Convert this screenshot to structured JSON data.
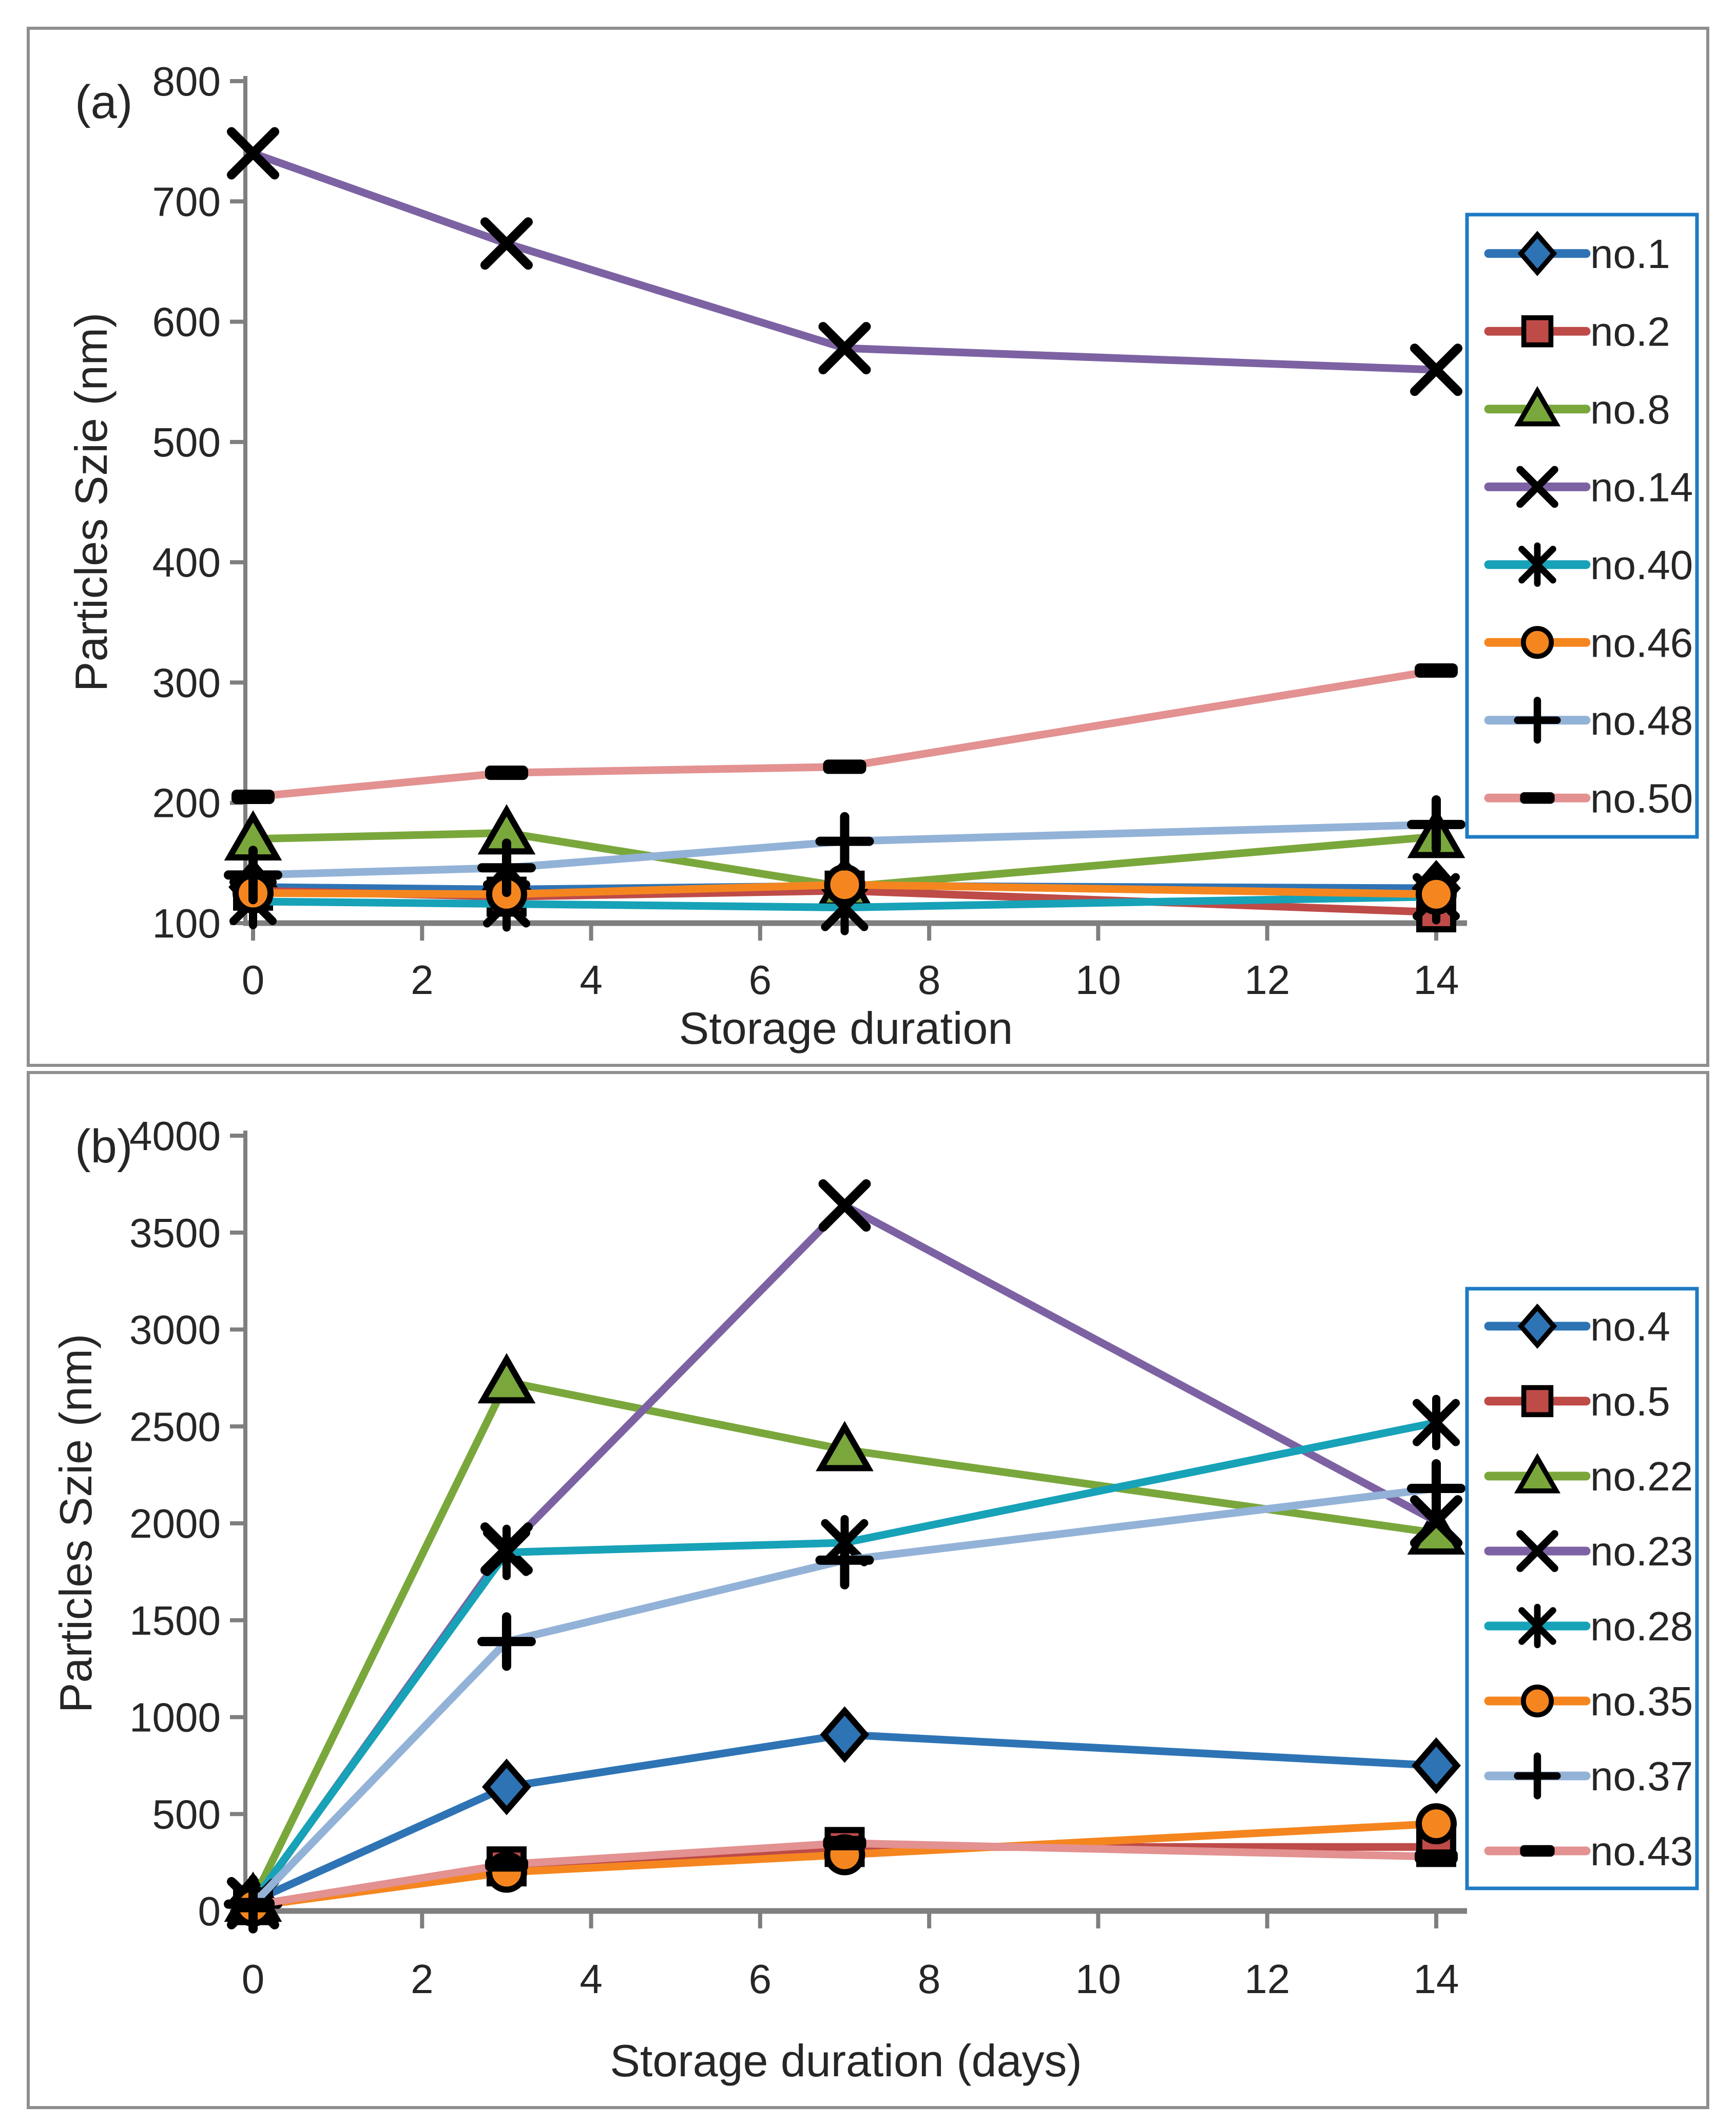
{
  "figure": {
    "background": "#ffffff",
    "panel_border_color": "#8f8f8f",
    "axis_color": "#7f7f7f",
    "text_color": "#262626",
    "legend_border_color": "#1e7bc4",
    "marker_outline_color": "#000000"
  },
  "chart_data": [
    {
      "type": "line",
      "panel_label": "(a)",
      "xlabel": "Storage duration",
      "ylabel": "Particles Szie (nm)",
      "x": [
        0,
        3,
        7,
        14
      ],
      "x_ticks": [
        0,
        2,
        4,
        6,
        8,
        10,
        12,
        14
      ],
      "xlim": [
        0,
        14
      ],
      "ylim": [
        100,
        800
      ],
      "y_tick_step": 100,
      "grid": false,
      "legend_position": "right-overlay",
      "series": [
        {
          "name": "no.1",
          "color": "#2e74b5",
          "marker": "diamond",
          "values": [
            130,
            128,
            131,
            129
          ]
        },
        {
          "name": "no.2",
          "color": "#be4b48",
          "marker": "square",
          "values": [
            127,
            122,
            127,
            109
          ]
        },
        {
          "name": "no.8",
          "color": "#7aa73c",
          "marker": "triangle",
          "values": [
            170,
            175,
            130,
            172
          ]
        },
        {
          "name": "no.14",
          "color": "#7d62a3",
          "marker": "x",
          "values": [
            740,
            665,
            578,
            560
          ]
        },
        {
          "name": "no.40",
          "color": "#17a2b8",
          "marker": "asterisk",
          "values": [
            118,
            116,
            113,
            122
          ]
        },
        {
          "name": "no.46",
          "color": "#f5861f",
          "marker": "circle",
          "values": [
            125,
            124,
            132,
            124
          ]
        },
        {
          "name": "no.48",
          "color": "#93b2d7",
          "marker": "plus",
          "values": [
            140,
            146,
            168,
            182
          ]
        },
        {
          "name": "no.50",
          "color": "#e39191",
          "marker": "dash",
          "values": [
            205,
            225,
            230,
            310
          ]
        }
      ]
    },
    {
      "type": "line",
      "panel_label": "(b)",
      "xlabel": "Storage duration (days)",
      "ylabel": "Particles Szie (nm)",
      "x": [
        0,
        3,
        7,
        14
      ],
      "x_ticks": [
        0,
        2,
        4,
        6,
        8,
        10,
        12,
        14
      ],
      "xlim": [
        0,
        14
      ],
      "ylim": [
        0,
        4000
      ],
      "y_tick_step": 500,
      "grid": false,
      "legend_position": "right-overlay",
      "series": [
        {
          "name": "no.4",
          "color": "#2e74b5",
          "marker": "diamond",
          "values": [
            50,
            640,
            910,
            750
          ]
        },
        {
          "name": "no.5",
          "color": "#be4b48",
          "marker": "square",
          "values": [
            30,
            230,
            330,
            330
          ]
        },
        {
          "name": "no.22",
          "color": "#7aa73c",
          "marker": "triangle",
          "values": [
            55,
            2730,
            2380,
            1950
          ]
        },
        {
          "name": "no.23",
          "color": "#7d62a3",
          "marker": "x",
          "values": [
            40,
            1870,
            3640,
            2010
          ]
        },
        {
          "name": "no.28",
          "color": "#17a2b8",
          "marker": "asterisk",
          "values": [
            45,
            1850,
            1900,
            2520
          ]
        },
        {
          "name": "no.35",
          "color": "#f5861f",
          "marker": "circle",
          "values": [
            25,
            200,
            290,
            450
          ]
        },
        {
          "name": "no.37",
          "color": "#93b2d7",
          "marker": "plus",
          "values": [
            35,
            1390,
            1810,
            2180
          ]
        },
        {
          "name": "no.43",
          "color": "#e39191",
          "marker": "dash",
          "values": [
            30,
            240,
            350,
            280
          ]
        }
      ]
    }
  ]
}
